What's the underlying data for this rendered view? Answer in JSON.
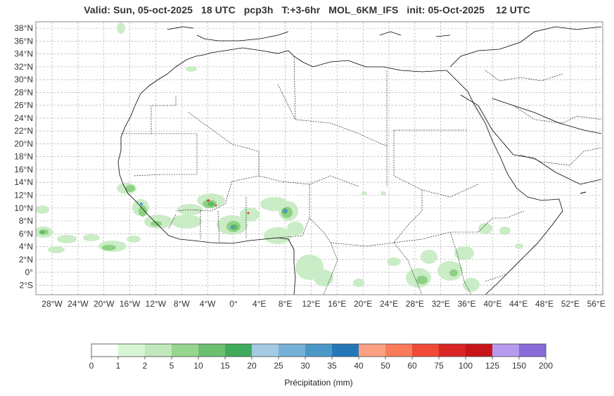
{
  "title": "Valid: Sun, 05-oct-2025   18 UTC   pcp3h   T:+3-6hr   MOL_6KM_IFS   init: 05-Oct-2025    12 UTC",
  "map": {
    "lat_labels": [
      "38°N",
      "36°N",
      "34°N",
      "32°N",
      "30°N",
      "28°N",
      "26°N",
      "24°N",
      "22°N",
      "20°N",
      "18°N",
      "16°N",
      "14°N",
      "12°N",
      "10°N",
      "8°N",
      "6°N",
      "4°N",
      "2°N",
      "0°",
      "2°S"
    ],
    "lon_labels": [
      "28°W",
      "24°W",
      "20°W",
      "16°W",
      "12°W",
      "8°W",
      "4°W",
      "0°",
      "4°E",
      "8°E",
      "12°E",
      "16°E",
      "20°E",
      "24°E",
      "28°E",
      "32°E",
      "36°E",
      "40°E",
      "44°E",
      "48°E",
      "52°E",
      "56°E"
    ],
    "lat_range": [
      -3.5,
      39
    ],
    "lon_range": [
      -30.5,
      57
    ],
    "grid": true
  },
  "colorbar": {
    "label": "Précipitation (mm)",
    "ticks": [
      "0",
      "1",
      "2",
      "5",
      "10",
      "15",
      "20",
      "25",
      "30",
      "35",
      "40",
      "50",
      "60",
      "75",
      "100",
      "125",
      "150",
      "200"
    ],
    "colors": [
      "#ffffff",
      "#d6f5d3",
      "#c0e8bb",
      "#97d68f",
      "#6cc070",
      "#41ab5d",
      "#a4cbe3",
      "#75b1d8",
      "#4b98c8",
      "#2577b8",
      "#fca084",
      "#fb7b5b",
      "#f14a36",
      "#d92624",
      "#c81518",
      "#b79bef",
      "#8a6bd9",
      "#4b0086"
    ]
  }
}
